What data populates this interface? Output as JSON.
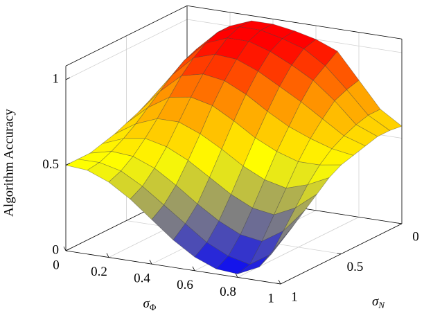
{
  "chart_data": {
    "type": "surface",
    "xlabel": {
      "base": "σ",
      "sub": "Φ"
    },
    "ylabel": {
      "base": "σ",
      "sub": "N"
    },
    "zlabel": "Algorithm Accuracy",
    "x": [
      0,
      0.1,
      0.2,
      0.3,
      0.4,
      0.5,
      0.6,
      0.7,
      0.8,
      0.9,
      1
    ],
    "y": [
      0,
      0.1,
      0.2,
      0.3,
      0.4,
      0.5,
      0.6,
      0.7,
      0.8,
      0.9,
      1
    ],
    "z": [
      [
        0.75,
        0.9,
        1.0,
        1.05,
        1.05,
        1.03,
        1.0,
        0.95,
        0.8,
        0.65,
        0.57
      ],
      [
        0.72,
        0.88,
        1.0,
        1.05,
        1.05,
        1.02,
        0.98,
        0.9,
        0.78,
        0.65,
        0.58
      ],
      [
        0.68,
        0.85,
        0.97,
        1.02,
        1.02,
        0.98,
        0.92,
        0.85,
        0.75,
        0.63,
        0.58
      ],
      [
        0.64,
        0.8,
        0.92,
        0.96,
        0.95,
        0.9,
        0.83,
        0.76,
        0.68,
        0.6,
        0.56
      ],
      [
        0.6,
        0.74,
        0.85,
        0.88,
        0.86,
        0.8,
        0.72,
        0.65,
        0.6,
        0.56,
        0.54
      ],
      [
        0.57,
        0.68,
        0.76,
        0.78,
        0.75,
        0.68,
        0.6,
        0.54,
        0.5,
        0.5,
        0.52
      ],
      [
        0.54,
        0.62,
        0.67,
        0.67,
        0.62,
        0.55,
        0.47,
        0.41,
        0.38,
        0.42,
        0.48
      ],
      [
        0.52,
        0.57,
        0.59,
        0.56,
        0.5,
        0.42,
        0.34,
        0.28,
        0.26,
        0.32,
        0.42
      ],
      [
        0.5,
        0.53,
        0.52,
        0.47,
        0.39,
        0.3,
        0.22,
        0.16,
        0.14,
        0.22,
        0.36
      ],
      [
        0.5,
        0.5,
        0.47,
        0.4,
        0.31,
        0.22,
        0.13,
        0.07,
        0.04,
        0.12,
        0.3
      ],
      [
        0.5,
        0.49,
        0.44,
        0.36,
        0.26,
        0.16,
        0.08,
        0.03,
        0.02,
        0.08,
        0.25
      ]
    ],
    "xlim": [
      0,
      1
    ],
    "ylim": [
      0,
      1
    ],
    "zlim": [
      0,
      1.08
    ],
    "xticks": [
      0,
      0.2,
      0.4,
      0.6,
      0.8,
      1
    ],
    "yticks": [
      0,
      0.5,
      1
    ],
    "zticks": [
      0,
      0.5,
      1
    ],
    "grid": true,
    "colormap": [
      {
        "value": 0,
        "color": "#0000ff"
      },
      {
        "value": 0.25,
        "color": "#808080"
      },
      {
        "value": 0.5,
        "color": "#ffff00"
      },
      {
        "value": 0.75,
        "color": "#ff9900"
      },
      {
        "value": 1,
        "color": "#ff0000"
      }
    ]
  }
}
